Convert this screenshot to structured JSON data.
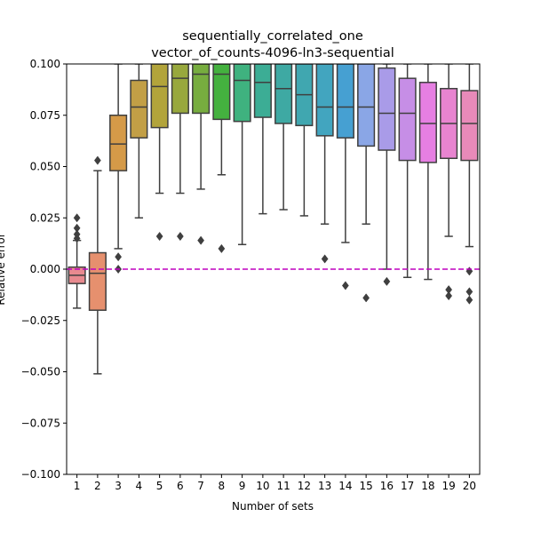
{
  "chart_data": {
    "type": "box",
    "title": [
      "sequentially_correlated_one",
      "vector_of_counts-4096-ln3-sequential"
    ],
    "xlabel": "Number of sets",
    "ylabel": "Relative error",
    "ylim": [
      -0.1,
      0.1
    ],
    "yticks": [
      "−0.100",
      "−0.075",
      "−0.050",
      "−0.025",
      "0.000",
      "0.025",
      "0.050",
      "0.075",
      "0.100"
    ],
    "ytick_values": [
      -0.1,
      -0.075,
      -0.05,
      -0.025,
      0.0,
      0.025,
      0.05,
      0.075,
      0.1
    ],
    "categories": [
      "1",
      "2",
      "3",
      "4",
      "5",
      "6",
      "7",
      "8",
      "9",
      "10",
      "11",
      "12",
      "13",
      "14",
      "15",
      "16",
      "17",
      "18",
      "19",
      "20"
    ],
    "reference_line": {
      "y": 0.0,
      "color": "#bf00bf",
      "style": "dashed"
    },
    "grid": false,
    "boxes": [
      {
        "x": "1",
        "color": "#e88a8f",
        "whislo": -0.019,
        "q1": -0.007,
        "med": -0.003,
        "q3": 0.001,
        "whishi": 0.014,
        "fliers": [
          0.015,
          0.017,
          0.02,
          0.025
        ]
      },
      {
        "x": "2",
        "color": "#e6906e",
        "whislo": -0.051,
        "q1": -0.02,
        "med": -0.002,
        "q3": 0.008,
        "whishi": 0.048,
        "fliers": [
          0.053
        ]
      },
      {
        "x": "3",
        "color": "#d59a48",
        "whislo": 0.01,
        "q1": 0.048,
        "med": 0.061,
        "q3": 0.075,
        "whishi": 0.1,
        "fliers": [
          0.006,
          0.0
        ]
      },
      {
        "x": "4",
        "color": "#c29f46",
        "whislo": 0.025,
        "q1": 0.064,
        "med": 0.079,
        "q3": 0.092,
        "whishi": 0.1,
        "fliers": []
      },
      {
        "x": "5",
        "color": "#b2a43b",
        "whislo": 0.037,
        "q1": 0.069,
        "med": 0.089,
        "q3": 0.1,
        "whishi": 0.1,
        "fliers": [
          0.016
        ]
      },
      {
        "x": "6",
        "color": "#98a83d",
        "whislo": 0.037,
        "q1": 0.076,
        "med": 0.093,
        "q3": 0.1,
        "whishi": 0.1,
        "fliers": [
          0.016
        ]
      },
      {
        "x": "7",
        "color": "#77ad3f",
        "whislo": 0.039,
        "q1": 0.076,
        "med": 0.095,
        "q3": 0.1,
        "whishi": 0.1,
        "fliers": [
          0.014
        ]
      },
      {
        "x": "8",
        "color": "#44b13f",
        "whislo": 0.046,
        "q1": 0.073,
        "med": 0.095,
        "q3": 0.1,
        "whishi": 0.1,
        "fliers": [
          0.01
        ]
      },
      {
        "x": "9",
        "color": "#3fb27f",
        "whislo": 0.012,
        "q1": 0.072,
        "med": 0.092,
        "q3": 0.1,
        "whishi": 0.1,
        "fliers": []
      },
      {
        "x": "10",
        "color": "#3cad95",
        "whislo": 0.027,
        "q1": 0.074,
        "med": 0.091,
        "q3": 0.1,
        "whishi": 0.1,
        "fliers": []
      },
      {
        "x": "11",
        "color": "#3ea9a3",
        "whislo": 0.029,
        "q1": 0.071,
        "med": 0.088,
        "q3": 0.1,
        "whishi": 0.1,
        "fliers": []
      },
      {
        "x": "12",
        "color": "#40a7b0",
        "whislo": 0.026,
        "q1": 0.07,
        "med": 0.085,
        "q3": 0.1,
        "whishi": 0.1,
        "fliers": []
      },
      {
        "x": "13",
        "color": "#42a5bf",
        "whislo": 0.022,
        "q1": 0.065,
        "med": 0.079,
        "q3": 0.1,
        "whishi": 0.1,
        "fliers": [
          0.005
        ]
      },
      {
        "x": "14",
        "color": "#46a0d2",
        "whislo": 0.013,
        "q1": 0.064,
        "med": 0.079,
        "q3": 0.1,
        "whishi": 0.1,
        "fliers": [
          -0.008
        ]
      },
      {
        "x": "15",
        "color": "#8aa6e6",
        "whislo": 0.022,
        "q1": 0.06,
        "med": 0.079,
        "q3": 0.1,
        "whishi": 0.1,
        "fliers": [
          -0.014
        ]
      },
      {
        "x": "16",
        "color": "#a99be8",
        "whislo": 0.0,
        "q1": 0.058,
        "med": 0.076,
        "q3": 0.098,
        "whishi": 0.1,
        "fliers": [
          -0.006
        ]
      },
      {
        "x": "17",
        "color": "#c68ee6",
        "whislo": -0.004,
        "q1": 0.053,
        "med": 0.076,
        "q3": 0.093,
        "whishi": 0.1,
        "fliers": []
      },
      {
        "x": "18",
        "color": "#e67fe2",
        "whislo": -0.005,
        "q1": 0.052,
        "med": 0.071,
        "q3": 0.091,
        "whishi": 0.1,
        "fliers": []
      },
      {
        "x": "19",
        "color": "#e884d0",
        "whislo": 0.016,
        "q1": 0.054,
        "med": 0.071,
        "q3": 0.088,
        "whishi": 0.1,
        "fliers": [
          -0.01,
          -0.013
        ]
      },
      {
        "x": "20",
        "color": "#e88ab9",
        "whislo": 0.011,
        "q1": 0.053,
        "med": 0.071,
        "q3": 0.087,
        "whishi": 0.1,
        "fliers": [
          -0.001,
          -0.011,
          -0.015
        ]
      }
    ]
  }
}
